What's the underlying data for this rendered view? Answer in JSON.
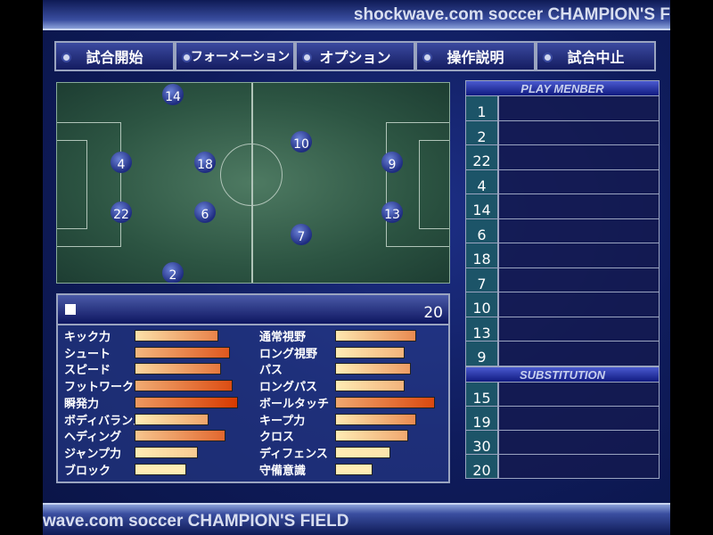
{
  "header": {
    "title": "shockwave.com soccer CHAMPION'S F"
  },
  "footer": {
    "title": "wave.com soccer CHAMPION'S FIELD"
  },
  "menu": [
    {
      "label": "試合開始"
    },
    {
      "label": "フォーメーション"
    },
    {
      "label": "オプション"
    },
    {
      "label": "操作説明"
    },
    {
      "label": "試合中止"
    }
  ],
  "field": {
    "players": [
      "14",
      "4",
      "18",
      "22",
      "6",
      "2",
      "10",
      "9",
      "13",
      "7"
    ]
  },
  "stats": {
    "player_number": "20",
    "left": [
      {
        "label": "キック力",
        "value": 78
      },
      {
        "label": "シュート",
        "value": 89
      },
      {
        "label": "スピード",
        "value": 81
      },
      {
        "label": "フットワーク",
        "value": 92
      },
      {
        "label": "瞬発力",
        "value": 97
      },
      {
        "label": "ボディバランス",
        "value": 69
      },
      {
        "label": "ヘディング",
        "value": 85
      },
      {
        "label": "ジャンプ力",
        "value": 59
      },
      {
        "label": "ブロック",
        "value": 48
      }
    ],
    "right": [
      {
        "label": "通常視野",
        "value": 76
      },
      {
        "label": "ロング視野",
        "value": 65
      },
      {
        "label": "パス",
        "value": 71
      },
      {
        "label": "ロングパス",
        "value": 65
      },
      {
        "label": "ボールタッチ",
        "value": 93
      },
      {
        "label": "キープ力",
        "value": 76
      },
      {
        "label": "クロス",
        "value": 68
      },
      {
        "label": "ディフェンス",
        "value": 52
      },
      {
        "label": "守備意識",
        "value": 35
      }
    ]
  },
  "roster": {
    "play_header": "PLAY MENBER",
    "play": [
      "1",
      "2",
      "22",
      "4",
      "14",
      "6",
      "18",
      "7",
      "10",
      "13",
      "9"
    ],
    "sub_header": "SUBSTITUTION",
    "subs": [
      "15",
      "19",
      "30",
      "20"
    ]
  },
  "colors": {
    "bar_low": "#fff0b8",
    "bar_high": "#d83a00"
  }
}
